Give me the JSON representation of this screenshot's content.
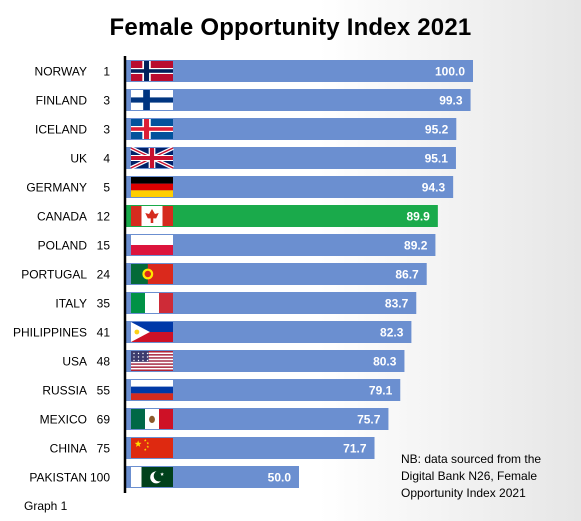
{
  "title": "Female Opportunity Index 2021",
  "note_lines": [
    "NB: data sourced from the",
    "Digital Bank N26, Female",
    "Opportunity Index 2021"
  ],
  "footer": "Graph 1",
  "colors": {
    "bar": "#6b8fd0",
    "highlight": "#1aaa4b",
    "label": "#ffffff",
    "axis": "#000000"
  },
  "chart_data": {
    "type": "bar",
    "orientation": "horizontal",
    "title": "Female Opportunity Index 2021",
    "xlim": [
      0,
      100
    ],
    "grid": false,
    "highlight": "CANADA",
    "bars": [
      {
        "country": "NORWAY",
        "rank": "1",
        "value": "100.0",
        "flag": "norway-flag-icon"
      },
      {
        "country": "FINLAND",
        "rank": "3",
        "value": "99.3",
        "flag": "finland-flag-icon"
      },
      {
        "country": "ICELAND",
        "rank": "3",
        "value": "95.2",
        "flag": "iceland-flag-icon"
      },
      {
        "country": "UK",
        "rank": "4",
        "value": "95.1",
        "flag": "uk-flag-icon"
      },
      {
        "country": "GERMANY",
        "rank": "5",
        "value": "94.3",
        "flag": "germany-flag-icon"
      },
      {
        "country": "CANADA",
        "rank": "12",
        "value": "89.9",
        "flag": "canada-flag-icon"
      },
      {
        "country": "POLAND",
        "rank": "15",
        "value": "89.2",
        "flag": "poland-flag-icon"
      },
      {
        "country": "PORTUGAL",
        "rank": "24",
        "value": "86.7",
        "flag": "portugal-flag-icon"
      },
      {
        "country": "ITALY",
        "rank": "35",
        "value": "83.7",
        "flag": "italy-flag-icon"
      },
      {
        "country": "PHILIPPINES",
        "rank": "41",
        "value": "82.3",
        "flag": "philippines-flag-icon"
      },
      {
        "country": "USA",
        "rank": "48",
        "value": "80.3",
        "flag": "usa-flag-icon"
      },
      {
        "country": "RUSSIA",
        "rank": "55",
        "value": "79.1",
        "flag": "russia-flag-icon"
      },
      {
        "country": "MEXICO",
        "rank": "69",
        "value": "75.7",
        "flag": "mexico-flag-icon"
      },
      {
        "country": "CHINA",
        "rank": "75",
        "value": "71.7",
        "flag": "china-flag-icon"
      },
      {
        "country": "PAKISTAN",
        "rank": "100",
        "value": "50.0",
        "flag": "pakistan-flag-icon"
      }
    ]
  }
}
